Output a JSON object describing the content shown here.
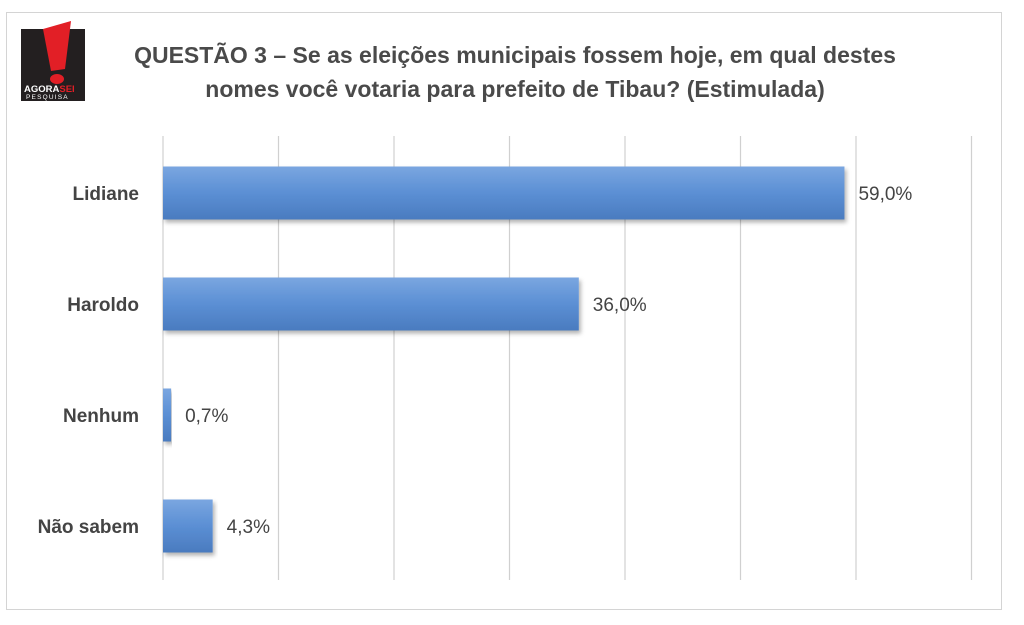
{
  "logo": {
    "brand_top": "AGORA",
    "brand_accent": "SEI",
    "brand_bottom": "PESQUISA",
    "icon": "exclamation-icon",
    "colors": {
      "red": "#e21f26",
      "dark": "#231f20"
    }
  },
  "chart_data": {
    "type": "bar",
    "orientation": "horizontal",
    "title_lines": [
      "QUESTÃO 3 – Se as eleições municipais fossem hoje, em qual destes",
      "nomes você votaria para prefeito de Tibau? (Estimulada)"
    ],
    "categories": [
      "Lidiane",
      "Haroldo",
      "Nenhum",
      "Não sabem"
    ],
    "values": [
      59.0,
      36.0,
      0.7,
      4.3
    ],
    "value_labels": [
      "59,0%",
      "36,0%",
      "0,7%",
      "4,3%"
    ],
    "xlim": [
      0,
      70
    ],
    "grid": true,
    "colors": {
      "bar": "#5b8fd4",
      "bar_light": "#7aa6e0",
      "bar_dark": "#4a7bbf"
    }
  }
}
